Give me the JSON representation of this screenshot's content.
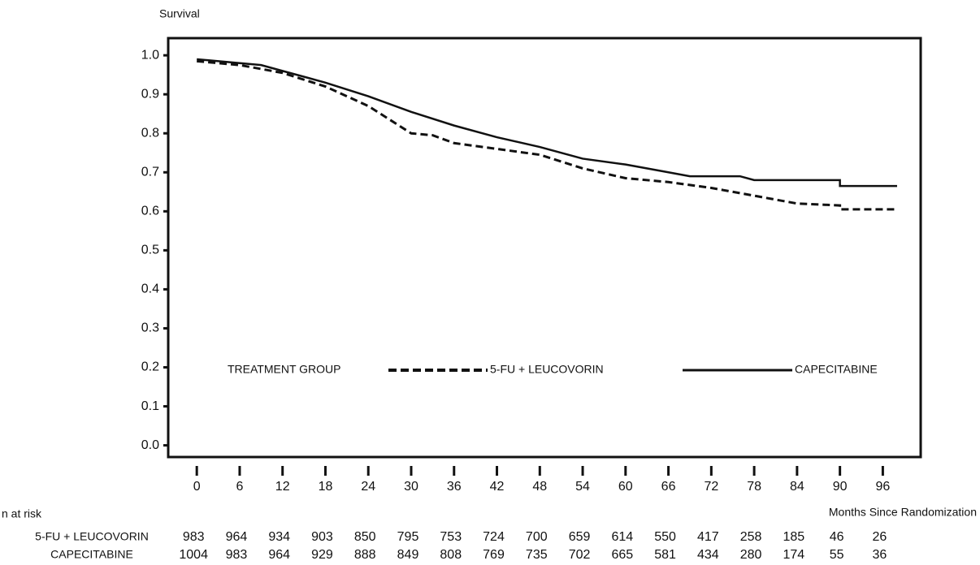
{
  "chart_data": {
    "type": "line",
    "y_label": "Survival",
    "x_label": "Months Since Randomization",
    "legend_title": "TREATMENT GROUP",
    "xlim": [
      -4,
      101.3
    ],
    "ylim": [
      -0.03,
      1.044
    ],
    "xticks": [
      0,
      6,
      12,
      18,
      24,
      30,
      36,
      42,
      48,
      54,
      60,
      66,
      72,
      78,
      84,
      90,
      96
    ],
    "yticks": [
      {
        "value": 0,
        "label": "0.0"
      },
      0.1,
      0.2,
      0.3,
      0.4,
      0.5,
      0.6,
      0.7,
      0.8,
      0.9,
      {
        "value": 1,
        "label": "1.0"
      }
    ],
    "series": [
      {
        "name": "5-FU + LEUCOVORIN",
        "color": "#111111",
        "dashed": true,
        "x": [
          0,
          6,
          12,
          18,
          24,
          30,
          33,
          36,
          42,
          48,
          54,
          60,
          66,
          72,
          78,
          84,
          90,
          90,
          98
        ],
        "values": [
          0.985,
          0.975,
          0.955,
          0.92,
          0.87,
          0.8,
          0.795,
          0.775,
          0.76,
          0.745,
          0.71,
          0.685,
          0.675,
          0.66,
          0.64,
          0.62,
          0.615,
          0.605,
          0.605
        ]
      },
      {
        "name": "CAPECITABINE",
        "color": "#111111",
        "dashed": false,
        "x": [
          0,
          6,
          9,
          12,
          18,
          24,
          30,
          36,
          42,
          48,
          54,
          60,
          66,
          69,
          76,
          78,
          90,
          90,
          98
        ],
        "values": [
          0.99,
          0.98,
          0.975,
          0.96,
          0.93,
          0.895,
          0.855,
          0.82,
          0.79,
          0.765,
          0.735,
          0.72,
          0.7,
          0.69,
          0.69,
          0.68,
          0.68,
          0.665,
          0.665
        ]
      }
    ],
    "risk_table": {
      "title": "n at risk",
      "rows": [
        {
          "name": "5-FU + LEUCOVORIN",
          "values": [
            983,
            964,
            934,
            903,
            850,
            795,
            753,
            724,
            700,
            659,
            614,
            550,
            417,
            258,
            185,
            46,
            26
          ]
        },
        {
          "name": "CAPECITABINE",
          "values": [
            1004,
            983,
            964,
            929,
            888,
            849,
            808,
            769,
            735,
            702,
            665,
            581,
            434,
            280,
            174,
            55,
            36
          ]
        }
      ]
    }
  }
}
